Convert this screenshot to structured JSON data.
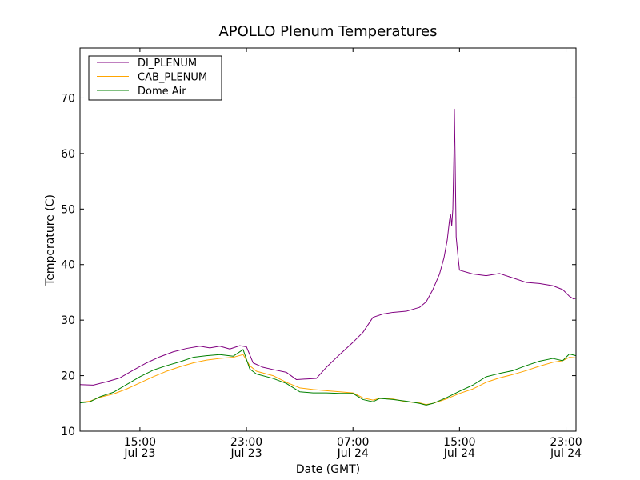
{
  "chart_data": {
    "type": "line",
    "title": "APOLLO Plenum Temperatures",
    "xlabel": "Date (GMT)",
    "ylabel": "Temperature (C)",
    "x_unit": "datetime (GMT)",
    "xlim": [
      "2014-07-23T10:30",
      "2014-07-24T23:45"
    ],
    "ylim": [
      10,
      79
    ],
    "yticks": [
      10,
      20,
      30,
      40,
      50,
      60,
      70
    ],
    "xticks": [
      {
        "time": "2014-07-23T15:00",
        "label_time": "15:00",
        "label_date": "Jul 23"
      },
      {
        "time": "2014-07-23T23:00",
        "label_time": "23:00",
        "label_date": "Jul 23"
      },
      {
        "time": "2014-07-24T07:00",
        "label_time": "07:00",
        "label_date": "Jul 24"
      },
      {
        "time": "2014-07-24T15:00",
        "label_time": "15:00",
        "label_date": "Jul 24"
      },
      {
        "time": "2014-07-24T23:00",
        "label_time": "23:00",
        "label_date": "Jul 24"
      }
    ],
    "legend_position": "top-left",
    "grid": false,
    "series": [
      {
        "name": "DI_PLENUM",
        "color": "#800080",
        "points": [
          [
            "2014-07-23T10:30",
            18.4
          ],
          [
            "2014-07-23T11:30",
            18.3
          ],
          [
            "2014-07-23T12:30",
            18.9
          ],
          [
            "2014-07-23T13:30",
            19.6
          ],
          [
            "2014-07-23T14:30",
            21.0
          ],
          [
            "2014-07-23T15:30",
            22.3
          ],
          [
            "2014-07-23T16:30",
            23.4
          ],
          [
            "2014-07-23T17:30",
            24.3
          ],
          [
            "2014-07-23T18:30",
            24.9
          ],
          [
            "2014-07-23T19:30",
            25.3
          ],
          [
            "2014-07-23T20:15",
            25.0
          ],
          [
            "2014-07-23T21:00",
            25.3
          ],
          [
            "2014-07-23T21:45",
            24.8
          ],
          [
            "2014-07-23T22:30",
            25.4
          ],
          [
            "2014-07-23T23:00",
            25.2
          ],
          [
            "2014-07-23T23:30",
            22.3
          ],
          [
            "2014-07-24T00:15",
            21.5
          ],
          [
            "2014-07-24T01:00",
            21.1
          ],
          [
            "2014-07-24T02:00",
            20.6
          ],
          [
            "2014-07-24T02:45",
            19.3
          ],
          [
            "2014-07-24T03:30",
            19.4
          ],
          [
            "2014-07-24T04:15",
            19.5
          ],
          [
            "2014-07-24T05:00",
            21.5
          ],
          [
            "2014-07-24T06:00",
            23.8
          ],
          [
            "2014-07-24T07:00",
            26.0
          ],
          [
            "2014-07-24T07:45",
            27.8
          ],
          [
            "2014-07-24T08:30",
            30.5
          ],
          [
            "2014-07-24T09:15",
            31.1
          ],
          [
            "2014-07-24T10:00",
            31.4
          ],
          [
            "2014-07-24T11:00",
            31.6
          ],
          [
            "2014-07-24T12:00",
            32.3
          ],
          [
            "2014-07-24T12:30",
            33.3
          ],
          [
            "2014-07-24T13:00",
            35.5
          ],
          [
            "2014-07-24T13:30",
            38.3
          ],
          [
            "2014-07-24T13:50",
            41.2
          ],
          [
            "2014-07-24T14:05",
            44.5
          ],
          [
            "2014-07-24T14:15",
            48.0
          ],
          [
            "2014-07-24T14:20",
            49.0
          ],
          [
            "2014-07-24T14:25",
            47.0
          ],
          [
            "2014-07-24T14:30",
            50.0
          ],
          [
            "2014-07-24T14:35",
            60.0
          ],
          [
            "2014-07-24T14:37",
            68.0
          ],
          [
            "2014-07-24T14:40",
            60.0
          ],
          [
            "2014-07-24T14:45",
            45.0
          ],
          [
            "2014-07-24T14:52",
            42.0
          ],
          [
            "2014-07-24T15:00",
            39.0
          ],
          [
            "2014-07-24T16:00",
            38.3
          ],
          [
            "2014-07-24T17:00",
            38.0
          ],
          [
            "2014-07-24T18:00",
            38.4
          ],
          [
            "2014-07-24T19:00",
            37.6
          ],
          [
            "2014-07-24T20:00",
            36.8
          ],
          [
            "2014-07-24T21:00",
            36.6
          ],
          [
            "2014-07-24T22:00",
            36.2
          ],
          [
            "2014-07-24T22:45",
            35.5
          ],
          [
            "2014-07-24T23:15",
            34.3
          ],
          [
            "2014-07-24T23:35",
            33.8
          ],
          [
            "2014-07-24T23:45",
            34.0
          ]
        ]
      },
      {
        "name": "CAB_PLENUM",
        "color": "#FFA500",
        "points": [
          [
            "2014-07-23T10:30",
            15.2
          ],
          [
            "2014-07-23T11:15",
            15.4
          ],
          [
            "2014-07-23T12:00",
            16.1
          ],
          [
            "2014-07-23T13:00",
            16.7
          ],
          [
            "2014-07-23T14:00",
            17.6
          ],
          [
            "2014-07-23T15:00",
            18.7
          ],
          [
            "2014-07-23T16:00",
            19.8
          ],
          [
            "2014-07-23T17:00",
            20.8
          ],
          [
            "2014-07-23T18:00",
            21.6
          ],
          [
            "2014-07-23T19:00",
            22.3
          ],
          [
            "2014-07-23T20:00",
            22.8
          ],
          [
            "2014-07-23T21:00",
            23.1
          ],
          [
            "2014-07-23T22:00",
            23.3
          ],
          [
            "2014-07-23T22:45",
            23.8
          ],
          [
            "2014-07-23T23:15",
            21.8
          ],
          [
            "2014-07-23T23:45",
            20.8
          ],
          [
            "2014-07-24T01:00",
            20.0
          ],
          [
            "2014-07-24T02:00",
            18.8
          ],
          [
            "2014-07-24T03:00",
            17.8
          ],
          [
            "2014-07-24T04:00",
            17.5
          ],
          [
            "2014-07-24T05:00",
            17.3
          ],
          [
            "2014-07-24T06:00",
            17.1
          ],
          [
            "2014-07-24T07:00",
            16.9
          ],
          [
            "2014-07-24T07:45",
            16.0
          ],
          [
            "2014-07-24T08:30",
            15.6
          ],
          [
            "2014-07-24T09:00",
            15.9
          ],
          [
            "2014-07-24T10:00",
            15.8
          ],
          [
            "2014-07-24T11:00",
            15.3
          ],
          [
            "2014-07-24T12:00",
            15.1
          ],
          [
            "2014-07-24T12:30",
            14.8
          ],
          [
            "2014-07-24T13:00",
            15.0
          ],
          [
            "2014-07-24T14:00",
            15.8
          ],
          [
            "2014-07-24T15:00",
            16.8
          ],
          [
            "2014-07-24T16:00",
            17.6
          ],
          [
            "2014-07-24T17:00",
            18.8
          ],
          [
            "2014-07-24T18:00",
            19.6
          ],
          [
            "2014-07-24T19:00",
            20.2
          ],
          [
            "2014-07-24T20:00",
            20.9
          ],
          [
            "2014-07-24T21:00",
            21.7
          ],
          [
            "2014-07-24T22:00",
            22.4
          ],
          [
            "2014-07-24T22:45",
            22.7
          ],
          [
            "2014-07-24T23:15",
            23.3
          ],
          [
            "2014-07-24T23:45",
            23.2
          ]
        ]
      },
      {
        "name": "Dome Air",
        "color": "#008000",
        "points": [
          [
            "2014-07-23T10:30",
            15.1
          ],
          [
            "2014-07-23T11:15",
            15.3
          ],
          [
            "2014-07-23T12:00",
            16.2
          ],
          [
            "2014-07-23T13:00",
            17.0
          ],
          [
            "2014-07-23T14:00",
            18.4
          ],
          [
            "2014-07-23T15:00",
            19.8
          ],
          [
            "2014-07-23T16:00",
            21.0
          ],
          [
            "2014-07-23T17:00",
            21.8
          ],
          [
            "2014-07-23T18:00",
            22.5
          ],
          [
            "2014-07-23T19:00",
            23.3
          ],
          [
            "2014-07-23T20:00",
            23.6
          ],
          [
            "2014-07-23T21:00",
            23.8
          ],
          [
            "2014-07-23T22:00",
            23.5
          ],
          [
            "2014-07-23T22:45",
            24.7
          ],
          [
            "2014-07-23T23:15",
            21.2
          ],
          [
            "2014-07-23T23:45",
            20.3
          ],
          [
            "2014-07-24T01:00",
            19.5
          ],
          [
            "2014-07-24T02:00",
            18.6
          ],
          [
            "2014-07-24T03:00",
            17.1
          ],
          [
            "2014-07-24T04:00",
            16.9
          ],
          [
            "2014-07-24T05:00",
            16.9
          ],
          [
            "2014-07-24T06:00",
            16.8
          ],
          [
            "2014-07-24T07:00",
            16.8
          ],
          [
            "2014-07-24T07:45",
            15.7
          ],
          [
            "2014-07-24T08:30",
            15.3
          ],
          [
            "2014-07-24T09:00",
            15.9
          ],
          [
            "2014-07-24T10:00",
            15.7
          ],
          [
            "2014-07-24T11:00",
            15.4
          ],
          [
            "2014-07-24T12:00",
            15.0
          ],
          [
            "2014-07-24T12:30",
            14.7
          ],
          [
            "2014-07-24T13:00",
            15.0
          ],
          [
            "2014-07-24T14:00",
            16.0
          ],
          [
            "2014-07-24T15:00",
            17.2
          ],
          [
            "2014-07-24T16:00",
            18.3
          ],
          [
            "2014-07-24T17:00",
            19.8
          ],
          [
            "2014-07-24T18:00",
            20.4
          ],
          [
            "2014-07-24T19:00",
            20.9
          ],
          [
            "2014-07-24T20:00",
            21.8
          ],
          [
            "2014-07-24T21:00",
            22.6
          ],
          [
            "2014-07-24T22:00",
            23.1
          ],
          [
            "2014-07-24T22:45",
            22.7
          ],
          [
            "2014-07-24T23:15",
            23.9
          ],
          [
            "2014-07-24T23:45",
            23.6
          ]
        ]
      }
    ]
  }
}
